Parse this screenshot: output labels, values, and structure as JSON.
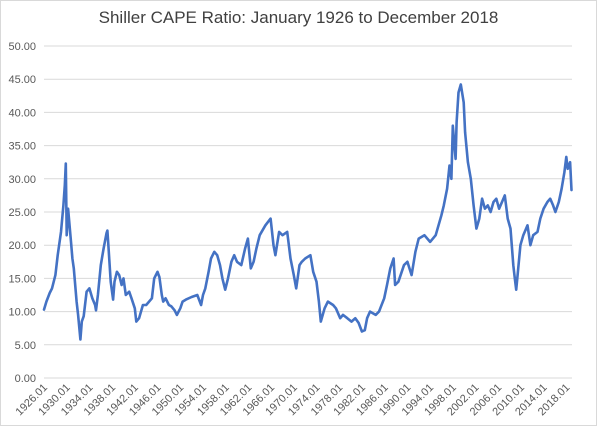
{
  "chart_data": {
    "type": "line",
    "title": "Shiller CAPE Ratio: January 1926 to December 2018",
    "xlabel": "",
    "ylabel": "",
    "ylim": [
      0,
      50
    ],
    "grid": true,
    "legend": "none",
    "color": "#4472c4",
    "y_ticks": [
      "0.00",
      "5.00",
      "10.00",
      "15.00",
      "20.00",
      "25.00",
      "30.00",
      "35.00",
      "40.00",
      "45.00",
      "50.00"
    ],
    "x_ticks": [
      "1926.01",
      "1930.01",
      "1934.01",
      "1938.01",
      "1942.01",
      "1946.01",
      "1950.01",
      "1954.01",
      "1958.01",
      "1962.01",
      "1966.01",
      "1970.01",
      "1974.01",
      "1978.01",
      "1982.01",
      "1986.01",
      "1990.01",
      "1994.01",
      "1998.01",
      "2002.01",
      "2006.01",
      "2010.01",
      "2014.01",
      "2018.01"
    ],
    "series": [
      {
        "x": [
          "1926.01",
          "1926.06",
          "1927.01",
          "1927.06",
          "1928.01",
          "1928.06",
          "1929.01",
          "1929.06",
          "1929.09",
          "1929.11",
          "1930.01",
          "1930.04",
          "1930.10",
          "1931.01",
          "1931.04",
          "1931.10",
          "1932.01",
          "1932.06",
          "1932.09",
          "1933.01",
          "1933.07",
          "1934.01",
          "1934.07",
          "1935.01",
          "1935.03",
          "1935.07",
          "1936.01",
          "1936.07",
          "1937.01",
          "1937.03",
          "1937.06",
          "1937.10",
          "1938.03",
          "1938.06",
          "1938.11",
          "1939.04",
          "1939.09",
          "1940.01",
          "1940.06",
          "1941.01",
          "1941.06",
          "1942.01",
          "1942.04",
          "1942.10",
          "1943.06",
          "1944.01",
          "1945.01",
          "1945.06",
          "1946.01",
          "1946.05",
          "1946.10",
          "1947.01",
          "1947.06",
          "1948.01",
          "1948.06",
          "1949.01",
          "1949.06",
          "1950.01",
          "1950.06",
          "1951.01",
          "1952.01",
          "1953.01",
          "1953.09",
          "1954.01",
          "1954.06",
          "1955.01",
          "1955.06",
          "1956.01",
          "1956.07",
          "1957.01",
          "1957.06",
          "1957.12",
          "1958.06",
          "1959.01",
          "1959.07",
          "1960.01",
          "1960.10",
          "1961.06",
          "1961.12",
          "1962.06",
          "1962.12",
          "1963.06",
          "1964.01",
          "1965.01",
          "1965.12",
          "1966.06",
          "1966.10",
          "1967.06",
          "1968.01",
          "1968.11",
          "1969.06",
          "1970.01",
          "1970.06",
          "1971.01",
          "1971.06",
          "1972.01",
          "1972.12",
          "1973.06",
          "1974.01",
          "1974.06",
          "1974.10",
          "1975.06",
          "1976.01",
          "1976.12",
          "1977.06",
          "1978.03",
          "1978.09",
          "1979.06",
          "1980.03",
          "1980.11",
          "1981.06",
          "1982.01",
          "1982.07",
          "1982.12",
          "1983.06",
          "1984.06",
          "1985.01",
          "1985.12",
          "1986.06",
          "1987.01",
          "1987.08",
          "1987.11",
          "1988.06",
          "1989.06",
          "1990.01",
          "1990.10",
          "1991.06",
          "1992.01",
          "1993.01",
          "1994.01",
          "1995.01",
          "1996.01",
          "1996.06",
          "1997.01",
          "1997.06",
          "1997.10",
          "1998.01",
          "1998.07",
          "1998.09",
          "1999.01",
          "1999.06",
          "1999.12",
          "2000.03",
          "2000.09",
          "2001.03",
          "2001.09",
          "2002.03",
          "2002.09",
          "2003.03",
          "2003.09",
          "2004.03",
          "2004.09",
          "2005.03",
          "2005.09",
          "2006.03",
          "2006.09",
          "2007.03",
          "2007.09",
          "2008.03",
          "2008.09",
          "2008.12",
          "2009.03",
          "2009.06",
          "2009.12",
          "2010.06",
          "2011.03",
          "2011.09",
          "2012.03",
          "2012.12",
          "2013.06",
          "2014.01",
          "2014.09",
          "2015.03",
          "2015.09",
          "2016.02",
          "2016.09",
          "2017.03",
          "2017.09",
          "2018.01",
          "2018.04",
          "2018.09",
          "2018.12"
        ],
        "values": [
          10.3,
          11.5,
          12.8,
          13.5,
          15.5,
          18.5,
          22.0,
          26.0,
          29.0,
          32.3,
          21.5,
          25.5,
          20.5,
          18.0,
          16.5,
          11.5,
          9.5,
          5.8,
          8.5,
          9.3,
          13.0,
          13.5,
          12.0,
          11.0,
          10.2,
          12.5,
          17.0,
          19.5,
          21.8,
          22.2,
          19.0,
          14.5,
          11.8,
          14.5,
          16.0,
          15.5,
          14.0,
          15.0,
          12.5,
          13.0,
          12.0,
          10.5,
          8.5,
          9.0,
          11.0,
          11.0,
          12.0,
          15.0,
          16.0,
          15.2,
          12.5,
          11.5,
          12.0,
          11.0,
          10.8,
          10.2,
          9.5,
          10.5,
          11.5,
          11.8,
          12.2,
          12.5,
          11.0,
          12.5,
          13.5,
          16.0,
          18.0,
          19.0,
          18.5,
          17.0,
          15.0,
          13.3,
          15.0,
          17.5,
          18.5,
          17.5,
          17.0,
          19.5,
          21.0,
          16.5,
          17.5,
          19.5,
          21.5,
          23.0,
          24.0,
          20.0,
          18.5,
          22.0,
          21.5,
          22.0,
          18.0,
          15.5,
          13.5,
          17.0,
          17.5,
          18.0,
          18.5,
          16.0,
          14.5,
          11.5,
          8.5,
          10.5,
          11.5,
          11.0,
          10.5,
          9.0,
          9.5,
          9.0,
          8.5,
          9.0,
          8.3,
          7.0,
          7.2,
          9.0,
          10.0,
          9.5,
          10.0,
          12.0,
          14.0,
          16.5,
          18.0,
          14.0,
          14.5,
          17.0,
          17.5,
          15.5,
          19.0,
          21.0,
          21.5,
          20.5,
          21.5,
          24.5,
          26.0,
          28.5,
          32.0,
          30.0,
          38.0,
          33.0,
          38.5,
          43.0,
          44.2,
          41.5,
          37.0,
          32.5,
          30.0,
          26.0,
          22.5,
          24.0,
          27.0,
          25.5,
          26.0,
          25.0,
          26.5,
          27.0,
          25.5,
          26.5,
          27.5,
          24.0,
          22.5,
          17.0,
          15.0,
          13.3,
          15.5,
          20.0,
          21.5,
          23.0,
          20.0,
          21.5,
          22.0,
          24.0,
          25.5,
          26.5,
          27.0,
          26.0,
          25.0,
          26.5,
          28.5,
          31.0,
          33.3,
          31.5,
          32.5,
          28.3
        ]
      }
    ]
  }
}
